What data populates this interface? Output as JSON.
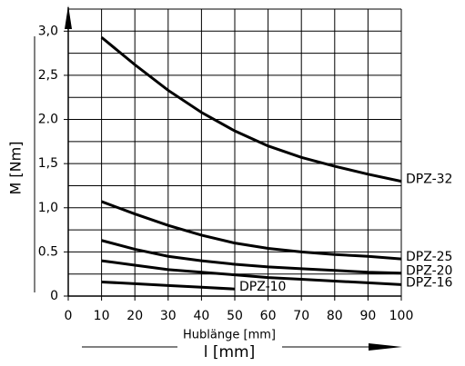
{
  "chart_data": {
    "type": "line",
    "ylabel": "M [Nm]",
    "xlabel": "Hublänge [mm]",
    "xlabel_symbol": "l [mm]",
    "x": [
      10,
      20,
      30,
      40,
      50,
      60,
      70,
      80,
      90,
      100
    ],
    "series": [
      {
        "name": "DPZ-32",
        "color": "#000000",
        "values": [
          2.93,
          2.62,
          2.33,
          2.08,
          1.87,
          1.7,
          1.57,
          1.47,
          1.38,
          1.3
        ]
      },
      {
        "name": "DPZ-25",
        "color": "#000000",
        "values": [
          1.07,
          0.93,
          0.8,
          0.69,
          0.6,
          0.54,
          0.5,
          0.47,
          0.45,
          0.42
        ]
      },
      {
        "name": "DPZ-20",
        "color": "#000000",
        "values": [
          0.63,
          0.53,
          0.45,
          0.4,
          0.36,
          0.33,
          0.31,
          0.29,
          0.27,
          0.26
        ]
      },
      {
        "name": "DPZ-16",
        "color": "#000000",
        "values": [
          0.4,
          0.35,
          0.3,
          0.27,
          0.24,
          0.21,
          0.19,
          0.17,
          0.15,
          0.13
        ]
      },
      {
        "name": "DPZ-10",
        "color": "#000000",
        "values": [
          0.16,
          0.14,
          0.12,
          0.1,
          0.08,
          null,
          null,
          null,
          null,
          null
        ]
      }
    ],
    "xlim": [
      0,
      100
    ],
    "xticks": [
      0,
      10,
      20,
      30,
      40,
      50,
      60,
      70,
      80,
      90,
      100
    ],
    "ylim": [
      0,
      3.25
    ],
    "yticks": [
      0,
      0.5,
      {
        "value": 1,
        "label": "1,0"
      },
      {
        "value": 1.5,
        "label": "1,5"
      },
      {
        "value": 2,
        "label": "2.0"
      },
      {
        "value": 2.5,
        "label": "2,5"
      },
      {
        "value": 3,
        "label": "3,0"
      }
    ],
    "y_minor_ticks": [
      0.25,
      0.75,
      1.25,
      1.75,
      2.25,
      2.75,
      3.25
    ],
    "grid": true
  }
}
